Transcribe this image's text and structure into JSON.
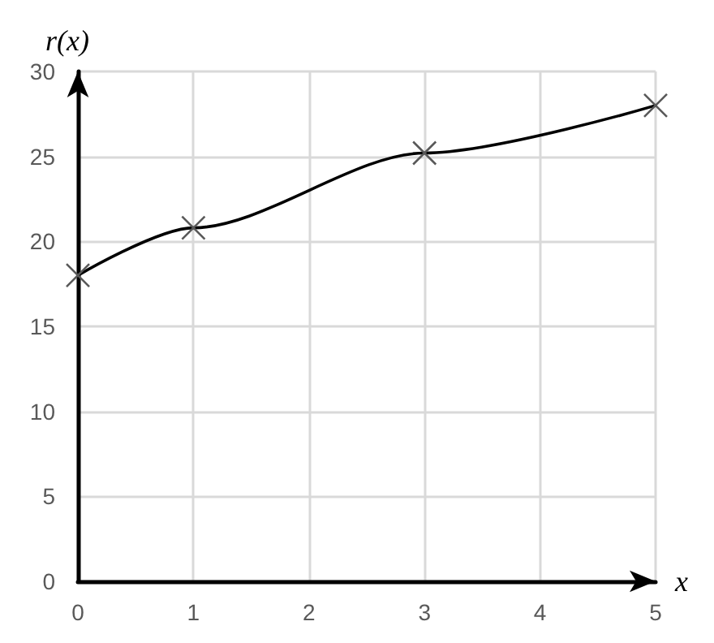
{
  "chart_data": {
    "type": "line",
    "xlabel": "x",
    "ylabel": "r(x)",
    "x": [
      0,
      1,
      3,
      5
    ],
    "series": [
      {
        "color": "#000000",
        "values": [
          18,
          20.8,
          25.2,
          28
        ]
      }
    ],
    "xlim": [
      0,
      5
    ],
    "xticks": [
      0,
      1,
      2,
      3,
      4,
      5
    ],
    "ylim": [
      0,
      30
    ],
    "yticks": [
      0,
      5,
      10,
      15,
      20,
      25,
      30
    ],
    "grid": true,
    "marker": "cross",
    "line_style": "solid"
  }
}
